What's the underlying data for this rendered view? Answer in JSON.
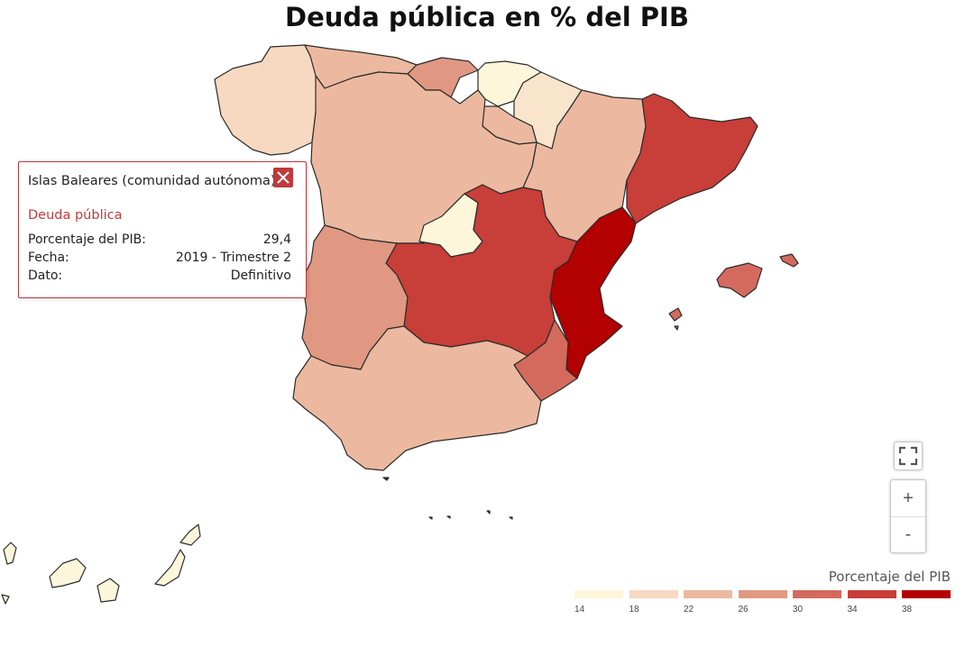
{
  "title": "Deuda pública en % del PIB",
  "popup": {
    "region": "Islas Baleares (comunidad autónoma)",
    "section": "Deuda pública",
    "rows": [
      {
        "label": "Porcentaje del PIB:",
        "value": "29,4"
      },
      {
        "label": "Fecha:",
        "value": "2019 - Trimestre 2"
      },
      {
        "label": "Dato:",
        "value": "Definitivo"
      }
    ]
  },
  "controls": {
    "fullscreen_icon": "fullscreen-icon",
    "zoom_in": "+",
    "zoom_out": "-"
  },
  "legend": {
    "title": "Porcentaje del PIB",
    "bins": [
      {
        "label": "14",
        "color": "#fdf6da"
      },
      {
        "label": "18",
        "color": "#f6d9c0"
      },
      {
        "label": "22",
        "color": "#ecb9a0"
      },
      {
        "label": "26",
        "color": "#e09882"
      },
      {
        "label": "30",
        "color": "#d46a5e"
      },
      {
        "label": "34",
        "color": "#c83e38"
      },
      {
        "label": "38",
        "color": "#b30000"
      }
    ]
  },
  "regions": [
    {
      "name": "Galicia",
      "color": "#f6d9c0"
    },
    {
      "name": "Asturias",
      "color": "#ecb9a0"
    },
    {
      "name": "Cantabria",
      "color": "#e09882"
    },
    {
      "name": "País Vasco",
      "color": "#fdf6da"
    },
    {
      "name": "Navarra",
      "color": "#f8e5cb"
    },
    {
      "name": "La Rioja",
      "color": "#ecb9a0"
    },
    {
      "name": "Aragón",
      "color": "#ecb9a0"
    },
    {
      "name": "Cataluña",
      "color": "#c83e38"
    },
    {
      "name": "Castilla y León",
      "color": "#ecb9a0"
    },
    {
      "name": "Madrid",
      "color": "#fdf6da"
    },
    {
      "name": "Castilla-La Mancha",
      "color": "#c83e38"
    },
    {
      "name": "Comunidad Valenciana",
      "color": "#b30000"
    },
    {
      "name": "Extremadura",
      "color": "#e09882"
    },
    {
      "name": "Región de Murcia",
      "color": "#d46a5e"
    },
    {
      "name": "Andalucía",
      "color": "#ecb9a0"
    },
    {
      "name": "Islas Baleares",
      "color": "#d46a5e"
    },
    {
      "name": "Canarias",
      "color": "#fdf6da"
    }
  ]
}
